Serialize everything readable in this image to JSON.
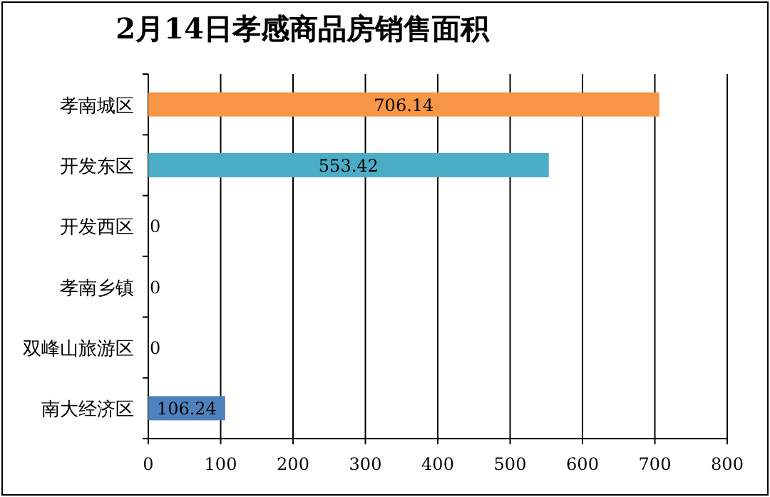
{
  "chart_data": {
    "type": "bar",
    "orientation": "horizontal",
    "title": "2月14日孝感商品房销售面积",
    "categories": [
      "孝南城区",
      "开发东区",
      "开发西区",
      "孝南乡镇",
      "双峰山旅游区",
      "南大经济区"
    ],
    "values": [
      706.14,
      553.42,
      0,
      0,
      0,
      106.24
    ],
    "colors": [
      "#f79646",
      "#4bacc6",
      "#4bacc6",
      "#4bacc6",
      "#4bacc6",
      "#4f81bd"
    ],
    "xlim": [
      0,
      800
    ],
    "xticks": [
      0,
      100,
      200,
      300,
      400,
      500,
      600,
      700,
      800
    ],
    "grid": "x",
    "data_labels": true
  }
}
